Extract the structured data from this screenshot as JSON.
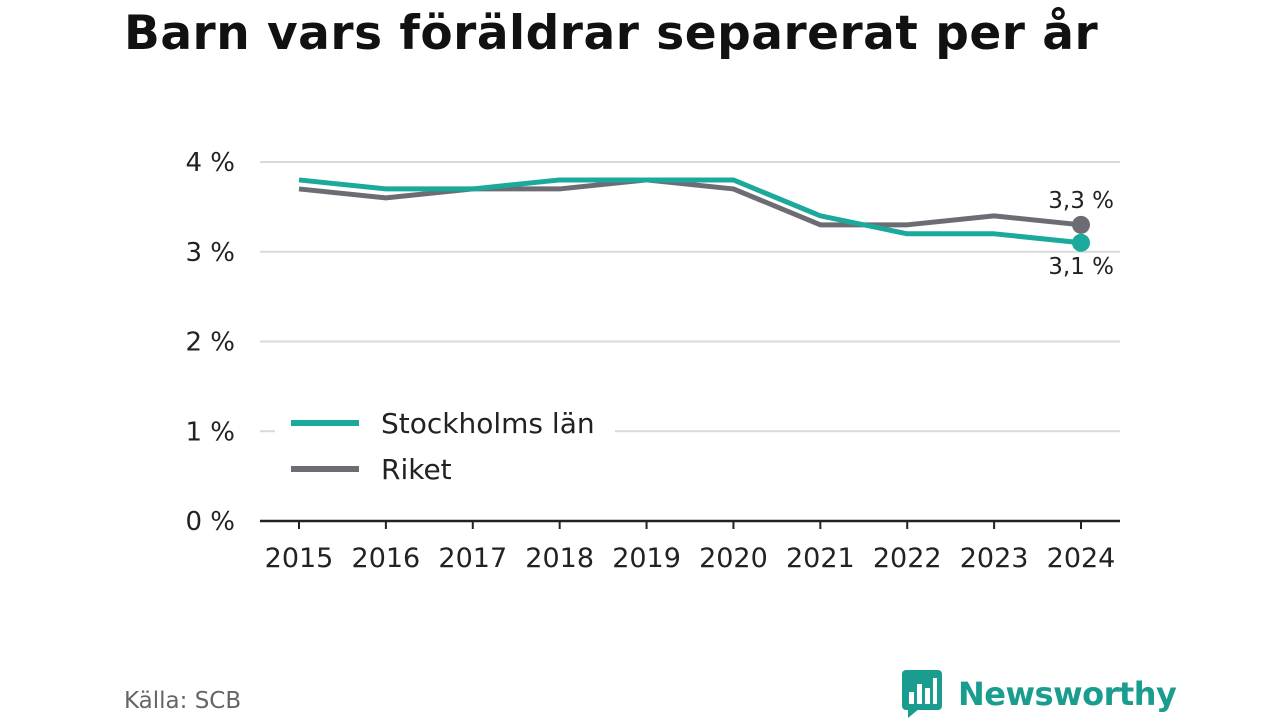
{
  "title": "Barn vars föräldrar separerat per år",
  "source": "Källa: SCB",
  "brand": {
    "name": "Newsworthy",
    "icon": "bar-chart-bubble-icon",
    "color": "#1a9c8e"
  },
  "chart_data": {
    "type": "line",
    "categories": [
      "2015",
      "2016",
      "2017",
      "2018",
      "2019",
      "2020",
      "2021",
      "2022",
      "2023",
      "2024"
    ],
    "series": [
      {
        "name": "Stockholms län",
        "color": "#1aa99b",
        "values": [
          3.8,
          3.7,
          3.7,
          3.8,
          3.8,
          3.8,
          3.4,
          3.2,
          3.2,
          3.1
        ],
        "end_label": "3,1 %"
      },
      {
        "name": "Riket",
        "color": "#6d6c74",
        "values": [
          3.7,
          3.6,
          3.7,
          3.7,
          3.8,
          3.7,
          3.3,
          3.3,
          3.4,
          3.3
        ],
        "end_label": "3,3 %"
      }
    ],
    "yticks": [
      "0 %",
      "1 %",
      "2 %",
      "3 %",
      "4 %"
    ],
    "ylim": [
      0,
      4
    ],
    "grid": true,
    "legend_position": "bottom-left"
  }
}
